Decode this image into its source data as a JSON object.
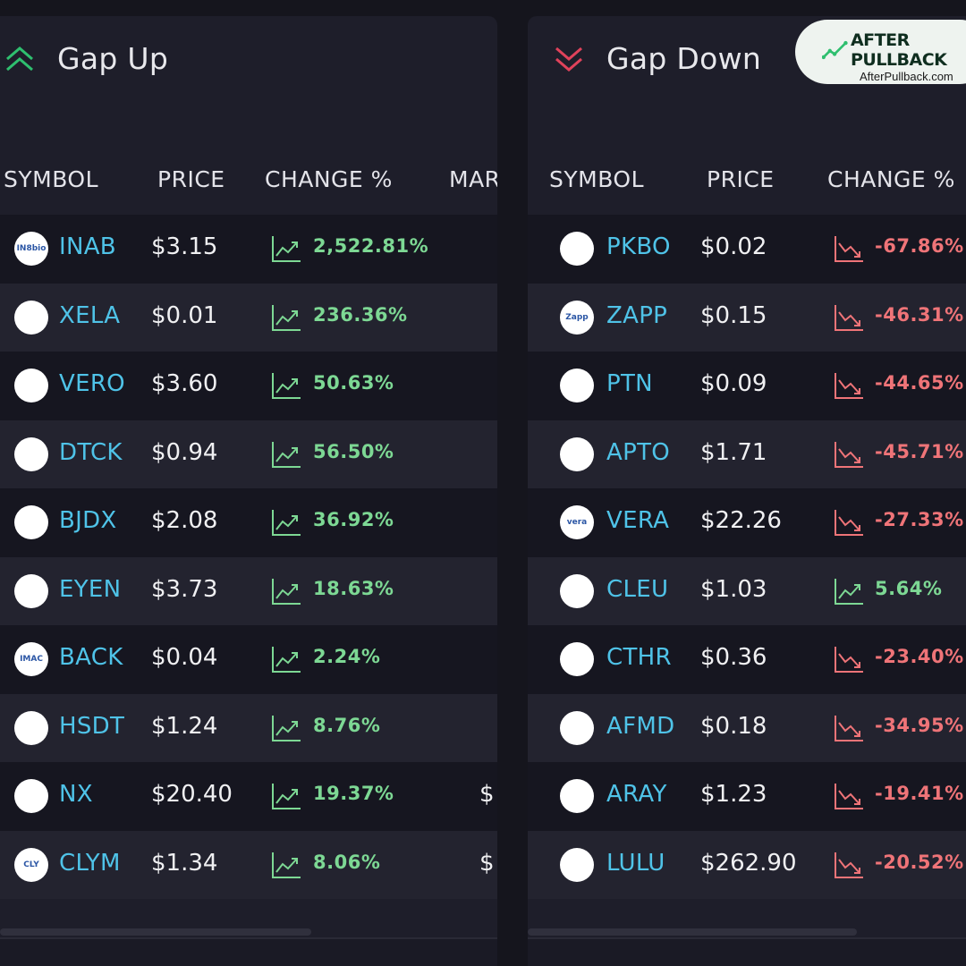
{
  "gap_up": {
    "title": "Gap Up",
    "columns": {
      "symbol": "SYMBOL",
      "price": "PRICE",
      "change": "CHANGE %",
      "market": "MAR"
    },
    "rows": [
      {
        "logo": "IN8bio",
        "symbol": "INAB",
        "price": "$3.15",
        "change": "2,522.81%",
        "direction": "up",
        "market": ""
      },
      {
        "logo": "",
        "symbol": "XELA",
        "price": "$0.01",
        "change": "236.36%",
        "direction": "up",
        "market": ""
      },
      {
        "logo": "",
        "symbol": "VERO",
        "price": "$3.60",
        "change": "50.63%",
        "direction": "up",
        "market": ""
      },
      {
        "logo": "",
        "symbol": "DTCK",
        "price": "$0.94",
        "change": "56.50%",
        "direction": "up",
        "market": ""
      },
      {
        "logo": "",
        "symbol": "BJDX",
        "price": "$2.08",
        "change": "36.92%",
        "direction": "up",
        "market": ""
      },
      {
        "logo": "",
        "symbol": "EYEN",
        "price": "$3.73",
        "change": "18.63%",
        "direction": "up",
        "market": ""
      },
      {
        "logo": "IMAC",
        "symbol": "BACK",
        "price": "$0.04",
        "change": "2.24%",
        "direction": "up",
        "market": ""
      },
      {
        "logo": "",
        "symbol": "HSDT",
        "price": "$1.24",
        "change": "8.76%",
        "direction": "up",
        "market": ""
      },
      {
        "logo": "",
        "symbol": "NX",
        "price": "$20.40",
        "change": "19.37%",
        "direction": "up",
        "market": "$"
      },
      {
        "logo": "CLY",
        "symbol": "CLYM",
        "price": "$1.34",
        "change": "8.06%",
        "direction": "up",
        "market": "$"
      }
    ]
  },
  "gap_down": {
    "title": "Gap Down",
    "columns": {
      "symbol": "SYMBOL",
      "price": "PRICE",
      "change": "CHANGE %"
    },
    "rows": [
      {
        "logo": "",
        "symbol": "PKBO",
        "price": "$0.02",
        "change": "-67.86%",
        "direction": "down"
      },
      {
        "logo": "Zapp",
        "symbol": "ZAPP",
        "price": "$0.15",
        "change": "-46.31%",
        "direction": "down"
      },
      {
        "logo": "",
        "symbol": "PTN",
        "price": "$0.09",
        "change": "-44.65%",
        "direction": "down"
      },
      {
        "logo": "",
        "symbol": "APTO",
        "price": "$1.71",
        "change": "-45.71%",
        "direction": "down"
      },
      {
        "logo": "vera",
        "symbol": "VERA",
        "price": "$22.26",
        "change": "-27.33%",
        "direction": "down"
      },
      {
        "logo": "",
        "symbol": "CLEU",
        "price": "$1.03",
        "change": "5.64%",
        "direction": "up"
      },
      {
        "logo": "",
        "symbol": "CTHR",
        "price": "$0.36",
        "change": "-23.40%",
        "direction": "down"
      },
      {
        "logo": "",
        "symbol": "AFMD",
        "price": "$0.18",
        "change": "-34.95%",
        "direction": "down"
      },
      {
        "logo": "",
        "symbol": "ARAY",
        "price": "$1.23",
        "change": "-19.41%",
        "direction": "down"
      },
      {
        "logo": "",
        "symbol": "LULU",
        "price": "$262.90",
        "change": "-20.52%",
        "direction": "down"
      }
    ]
  },
  "brand": {
    "name": "AFTER PULLBACK",
    "url": "AfterPullback.com"
  },
  "colors": {
    "symbol": "#4fc3e8",
    "up": "#7dd894",
    "down": "#ef7478",
    "background": "#15151d",
    "panel": "#1e1e2a"
  },
  "icons": {
    "gap_up": "double-chevron-up-icon",
    "gap_down": "double-chevron-down-icon",
    "trend_up": "trend-up-icon",
    "trend_down": "trend-down-icon"
  }
}
